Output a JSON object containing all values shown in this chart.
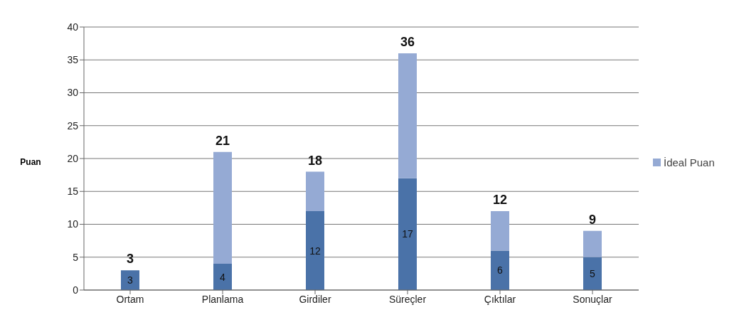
{
  "chart_data": {
    "type": "bar",
    "stacked": true,
    "ylabel": "Puan",
    "categories": [
      "Ortam",
      "Planlama",
      "Girdiler",
      "Süreçler",
      "Çıktılar",
      "Sonuçlar"
    ],
    "series": [
      {
        "color": "#4a72a8",
        "values": [
          3,
          4,
          12,
          17,
          6,
          5
        ],
        "value_labels": [
          "3",
          "4",
          "12",
          "17",
          "6",
          "5"
        ]
      },
      {
        "name": "İdeal Puan",
        "color": "#95aad4",
        "values": [
          0,
          17,
          6,
          19,
          6,
          4
        ]
      }
    ],
    "totals": [
      "3",
      "21",
      "18",
      "36",
      "12",
      "9"
    ],
    "ylim": [
      0,
      40
    ],
    "yticks": [
      0,
      5,
      10,
      15,
      20,
      25,
      30,
      35,
      40
    ],
    "grid": "y",
    "legend": "right"
  }
}
